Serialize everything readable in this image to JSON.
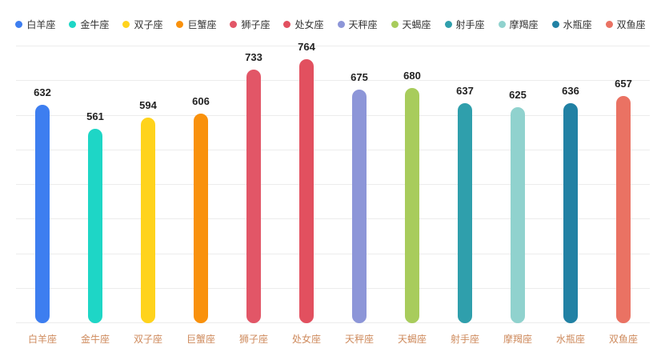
{
  "chart_data": {
    "type": "bar",
    "categories": [
      "白羊座",
      "金牛座",
      "双子座",
      "巨蟹座",
      "狮子座",
      "处女座",
      "天秤座",
      "天蝎座",
      "射手座",
      "摩羯座",
      "水瓶座",
      "双鱼座"
    ],
    "values": [
      632,
      561,
      594,
      606,
      733,
      764,
      675,
      680,
      637,
      625,
      636,
      657
    ],
    "colors": [
      "#3D7EF0",
      "#1ED6C6",
      "#FFD31C",
      "#F9910C",
      "#E25667",
      "#E2505F",
      "#8D96D8",
      "#A8CC5C",
      "#2F9FAC",
      "#90D2CE",
      "#2181A4",
      "#EA7263"
    ],
    "title": "",
    "xlabel": "",
    "ylabel": "",
    "ylim": [
      0,
      800
    ],
    "grid": true,
    "grid_steps": 8,
    "legend_position": "top",
    "legend": [
      "白羊座",
      "金牛座",
      "双子座",
      "巨蟹座",
      "狮子座",
      "处女座",
      "天秤座",
      "天蝎座",
      "射手座",
      "摩羯座",
      "水瓶座",
      "双鱼座"
    ]
  },
  "styles": {
    "value_label_color": "#222222",
    "axis_label_color": "#CE8A5C",
    "legend_text_color": "#333333",
    "gridline_color": "#ECECEC",
    "background_color": "#FFFFFF"
  }
}
